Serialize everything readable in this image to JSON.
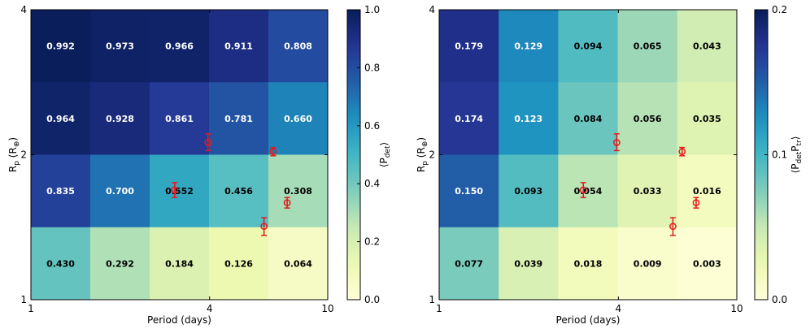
{
  "chart_data": [
    {
      "type": "heatmap",
      "xlabel": "Period (days)",
      "ylabel": "R_p (R_⊕)",
      "ylabel_main": "R",
      "ylabel_sub": "p",
      "ylabel_unit": " (R",
      "ylabel_unit_sub": "⊕",
      "ylabel_close": ")",
      "x_ticks": [
        "1",
        "4",
        "10"
      ],
      "y_ticks": [
        "1",
        "2",
        "4"
      ],
      "xlim": [
        1,
        10
      ],
      "ylim": [
        1,
        4
      ],
      "x_scale": "log",
      "y_scale": "log",
      "x_edges": [
        1.0,
        1.585,
        2.512,
        3.981,
        6.31,
        10.0
      ],
      "y_edges": [
        1.0,
        1.414,
        2.0,
        2.828,
        4.0
      ],
      "rows_top_to_bottom": [
        [
          0.992,
          0.973,
          0.966,
          0.911,
          0.808
        ],
        [
          0.964,
          0.928,
          0.861,
          0.781,
          0.66
        ],
        [
          0.835,
          0.7,
          0.552,
          0.456,
          0.308
        ],
        [
          0.43,
          0.292,
          0.184,
          0.126,
          0.064
        ]
      ],
      "labels_top_to_bottom": [
        [
          "0.992",
          "0.973",
          "0.966",
          "0.911",
          "0.808"
        ],
        [
          "0.964",
          "0.928",
          "0.861",
          "0.781",
          "0.660"
        ],
        [
          "0.835",
          "0.700",
          "0.552",
          "0.456",
          "0.308"
        ],
        [
          "0.430",
          "0.292",
          "0.184",
          "0.126",
          "0.064"
        ]
      ],
      "colorbar": {
        "vmin": 0.0,
        "vmax": 1.0,
        "ticks": [
          "0.0",
          "0.2",
          "0.4",
          "0.6",
          "0.8",
          "1.0"
        ],
        "tick_values": [
          0.0,
          0.2,
          0.4,
          0.6,
          0.8,
          1.0
        ],
        "label": "⟨P_det⟩",
        "label_main": "⟨P",
        "label_sub": "det",
        "label_close": "⟩"
      },
      "points": [
        {
          "period": 3.95,
          "radius": 2.12,
          "err_low": 0.08,
          "err_high": 0.09
        },
        {
          "period": 6.55,
          "radius": 2.03,
          "err_low": 0.04,
          "err_high": 0.04
        },
        {
          "period": 3.05,
          "radius": 1.69,
          "err_low": 0.06,
          "err_high": 0.06
        },
        {
          "period": 7.3,
          "radius": 1.59,
          "err_low": 0.04,
          "err_high": 0.04
        },
        {
          "period": 6.1,
          "radius": 1.42,
          "err_low": 0.06,
          "err_high": 0.06
        }
      ]
    },
    {
      "type": "heatmap",
      "xlabel": "Period (days)",
      "ylabel": "R_p (R_⊕)",
      "ylabel_main": "R",
      "ylabel_sub": "p",
      "ylabel_unit": " (R",
      "ylabel_unit_sub": "⊕",
      "ylabel_close": ")",
      "x_ticks": [
        "1",
        "4",
        "10"
      ],
      "y_ticks": [
        "1",
        "2",
        "4"
      ],
      "xlim": [
        1,
        10
      ],
      "ylim": [
        1,
        4
      ],
      "x_scale": "log",
      "y_scale": "log",
      "x_edges": [
        1.0,
        1.585,
        2.512,
        3.981,
        6.31,
        10.0
      ],
      "y_edges": [
        1.0,
        1.414,
        2.0,
        2.828,
        4.0
      ],
      "rows_top_to_bottom": [
        [
          0.179,
          0.129,
          0.094,
          0.065,
          0.043
        ],
        [
          0.174,
          0.123,
          0.084,
          0.056,
          0.035
        ],
        [
          0.15,
          0.093,
          0.054,
          0.033,
          0.016
        ],
        [
          0.077,
          0.039,
          0.018,
          0.009,
          0.003
        ]
      ],
      "labels_top_to_bottom": [
        [
          "0.179",
          "0.129",
          "0.094",
          "0.065",
          "0.043"
        ],
        [
          "0.174",
          "0.123",
          "0.084",
          "0.056",
          "0.035"
        ],
        [
          "0.150",
          "0.093",
          "0.054",
          "0.033",
          "0.016"
        ],
        [
          "0.077",
          "0.039",
          "0.018",
          "0.009",
          "0.003"
        ]
      ],
      "colorbar": {
        "vmin": 0.0,
        "vmax": 0.2,
        "ticks": [
          "0.0",
          "0.1",
          "0.2"
        ],
        "tick_values": [
          0.0,
          0.1,
          0.2
        ],
        "label": "⟨P_det P_tr⟩",
        "label_main": "⟨P",
        "label_sub": "det",
        "label_mid": "P",
        "label_sub2": "tr",
        "label_close": "⟩"
      },
      "points": [
        {
          "period": 3.95,
          "radius": 2.12,
          "err_low": 0.08,
          "err_high": 0.09
        },
        {
          "period": 6.55,
          "radius": 2.03,
          "err_low": 0.04,
          "err_high": 0.04
        },
        {
          "period": 3.05,
          "radius": 1.69,
          "err_low": 0.06,
          "err_high": 0.06
        },
        {
          "period": 7.3,
          "radius": 1.59,
          "err_low": 0.04,
          "err_high": 0.04
        },
        {
          "period": 6.1,
          "radius": 1.42,
          "err_low": 0.06,
          "err_high": 0.06
        }
      ]
    }
  ],
  "colors": {
    "marker": "#e31a1c",
    "text_dark_bg": "#ffffff",
    "text_light_bg": "#000000"
  }
}
